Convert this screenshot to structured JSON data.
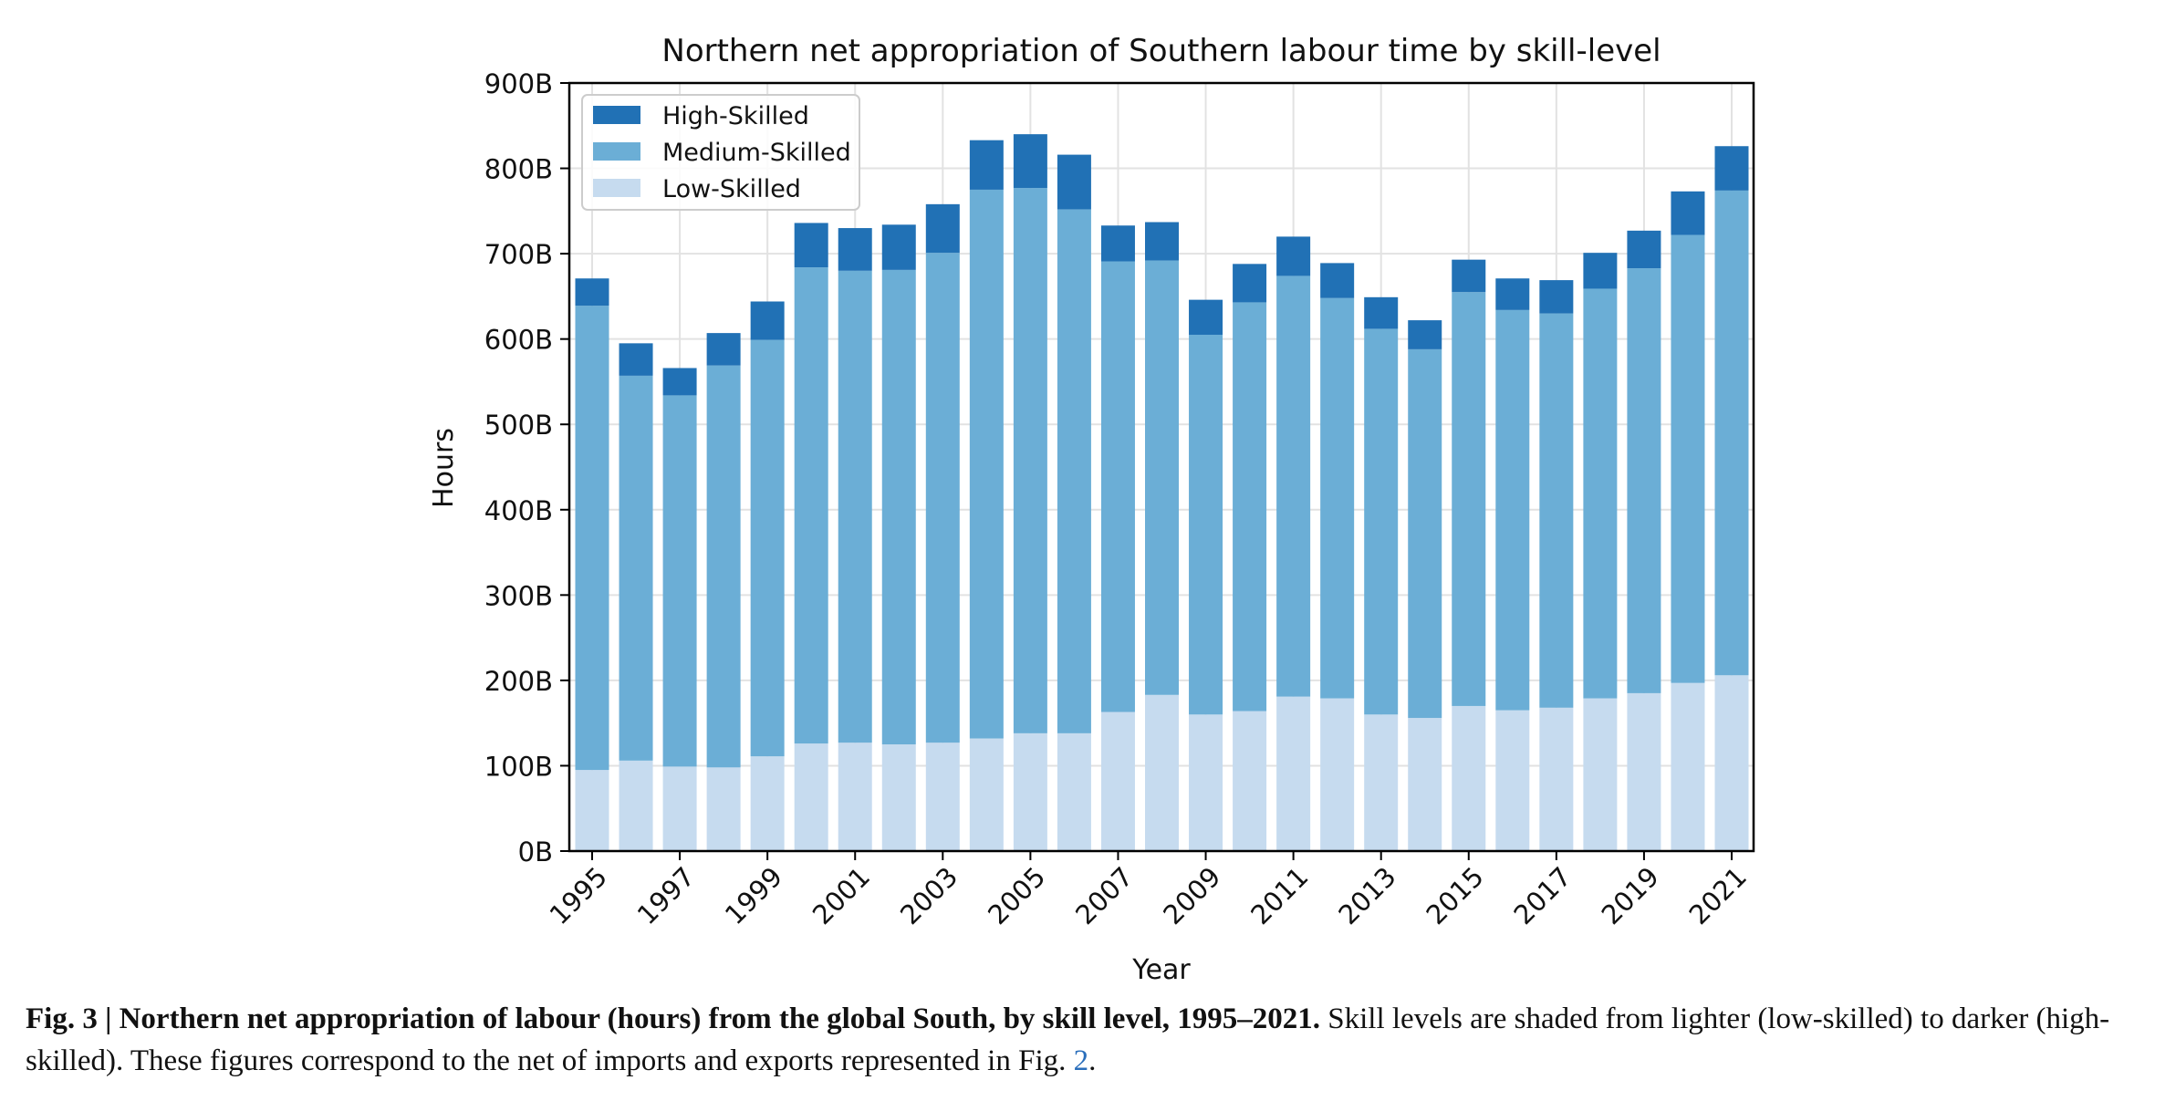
{
  "chart_data": {
    "type": "bar",
    "stacked": true,
    "title": "Northern net appropriation of Southern labour time by skill-level",
    "xlabel": "Year",
    "ylabel": "Hours",
    "ylim": [
      0,
      900
    ],
    "yticks": [
      0,
      100,
      200,
      300,
      400,
      500,
      600,
      700,
      800,
      900
    ],
    "ytick_labels": [
      "0B",
      "100B",
      "200B",
      "300B",
      "400B",
      "500B",
      "600B",
      "700B",
      "800B",
      "900B"
    ],
    "xtick_labels": [
      "1995",
      "1997",
      "1999",
      "2001",
      "2003",
      "2005",
      "2007",
      "2009",
      "2011",
      "2013",
      "2015",
      "2017",
      "2019",
      "2021"
    ],
    "grid": true,
    "legend_position": "top-left",
    "categories": [
      "1995",
      "1996",
      "1997",
      "1998",
      "1999",
      "2000",
      "2001",
      "2002",
      "2003",
      "2004",
      "2005",
      "2006",
      "2007",
      "2008",
      "2009",
      "2010",
      "2011",
      "2012",
      "2013",
      "2014",
      "2015",
      "2016",
      "2017",
      "2018",
      "2019",
      "2020",
      "2021"
    ],
    "series": [
      {
        "name": "Low-Skilled",
        "color": "#c6dbef",
        "values": [
          95,
          106,
          99,
          98,
          111,
          126,
          127,
          125,
          127,
          132,
          138,
          138,
          163,
          183,
          160,
          164,
          181,
          179,
          160,
          156,
          170,
          165,
          168,
          179,
          185,
          197,
          206
        ]
      },
      {
        "name": "Medium-Skilled",
        "color": "#6baed6",
        "values": [
          544,
          451,
          435,
          471,
          488,
          558,
          553,
          556,
          574,
          643,
          639,
          614,
          528,
          509,
          445,
          479,
          493,
          469,
          452,
          432,
          485,
          469,
          462,
          480,
          498,
          525,
          568
        ]
      },
      {
        "name": "High-Skilled",
        "color": "#2171b5",
        "values": [
          32,
          38,
          32,
          38,
          45,
          52,
          50,
          53,
          57,
          58,
          63,
          64,
          42,
          45,
          41,
          45,
          46,
          41,
          37,
          34,
          38,
          37,
          39,
          42,
          44,
          51,
          52
        ]
      }
    ],
    "legend_order": [
      "High-Skilled",
      "Medium-Skilled",
      "Low-Skilled"
    ]
  },
  "caption": {
    "label": "Fig. 3 | Northern net appropriation of labour (hours) from the global South, by skill level, 1995–2021.",
    "text": " Skill levels are shaded from lighter (low-skilled) to darker (high-skilled). These figures correspond to the net of imports and exports represented in Fig. ",
    "link": "2",
    "end": "."
  }
}
